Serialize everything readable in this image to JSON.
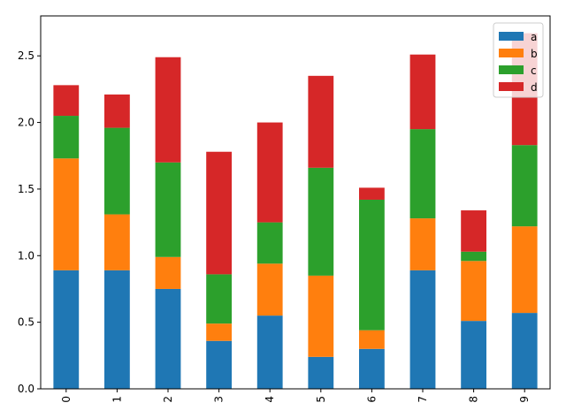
{
  "chart_data": {
    "type": "bar",
    "stacked": true,
    "categories": [
      "0",
      "1",
      "2",
      "3",
      "4",
      "5",
      "6",
      "7",
      "8",
      "9"
    ],
    "series": [
      {
        "name": "a",
        "color": "#1f77b4",
        "values": [
          0.89,
          0.89,
          0.75,
          0.36,
          0.55,
          0.24,
          0.3,
          0.89,
          0.51,
          0.57
        ]
      },
      {
        "name": "b",
        "color": "#ff7f0e",
        "values": [
          0.84,
          0.42,
          0.24,
          0.13,
          0.39,
          0.61,
          0.14,
          0.39,
          0.45,
          0.65
        ]
      },
      {
        "name": "c",
        "color": "#2ca02c",
        "values": [
          0.32,
          0.65,
          0.71,
          0.37,
          0.31,
          0.81,
          0.98,
          0.67,
          0.07,
          0.61
        ]
      },
      {
        "name": "d",
        "color": "#d62728",
        "values": [
          0.23,
          0.25,
          0.79,
          0.92,
          0.75,
          0.69,
          0.09,
          0.56,
          0.31,
          0.84
        ]
      }
    ],
    "ylim": [
      0,
      2.8
    ],
    "yticks": [
      "0.0",
      "0.5",
      "1.0",
      "1.5",
      "2.0",
      "2.5"
    ],
    "xtick_rotation": "vertical",
    "grid": false,
    "legend_position": "top-right",
    "title": "",
    "xlabel": "",
    "ylabel": ""
  }
}
